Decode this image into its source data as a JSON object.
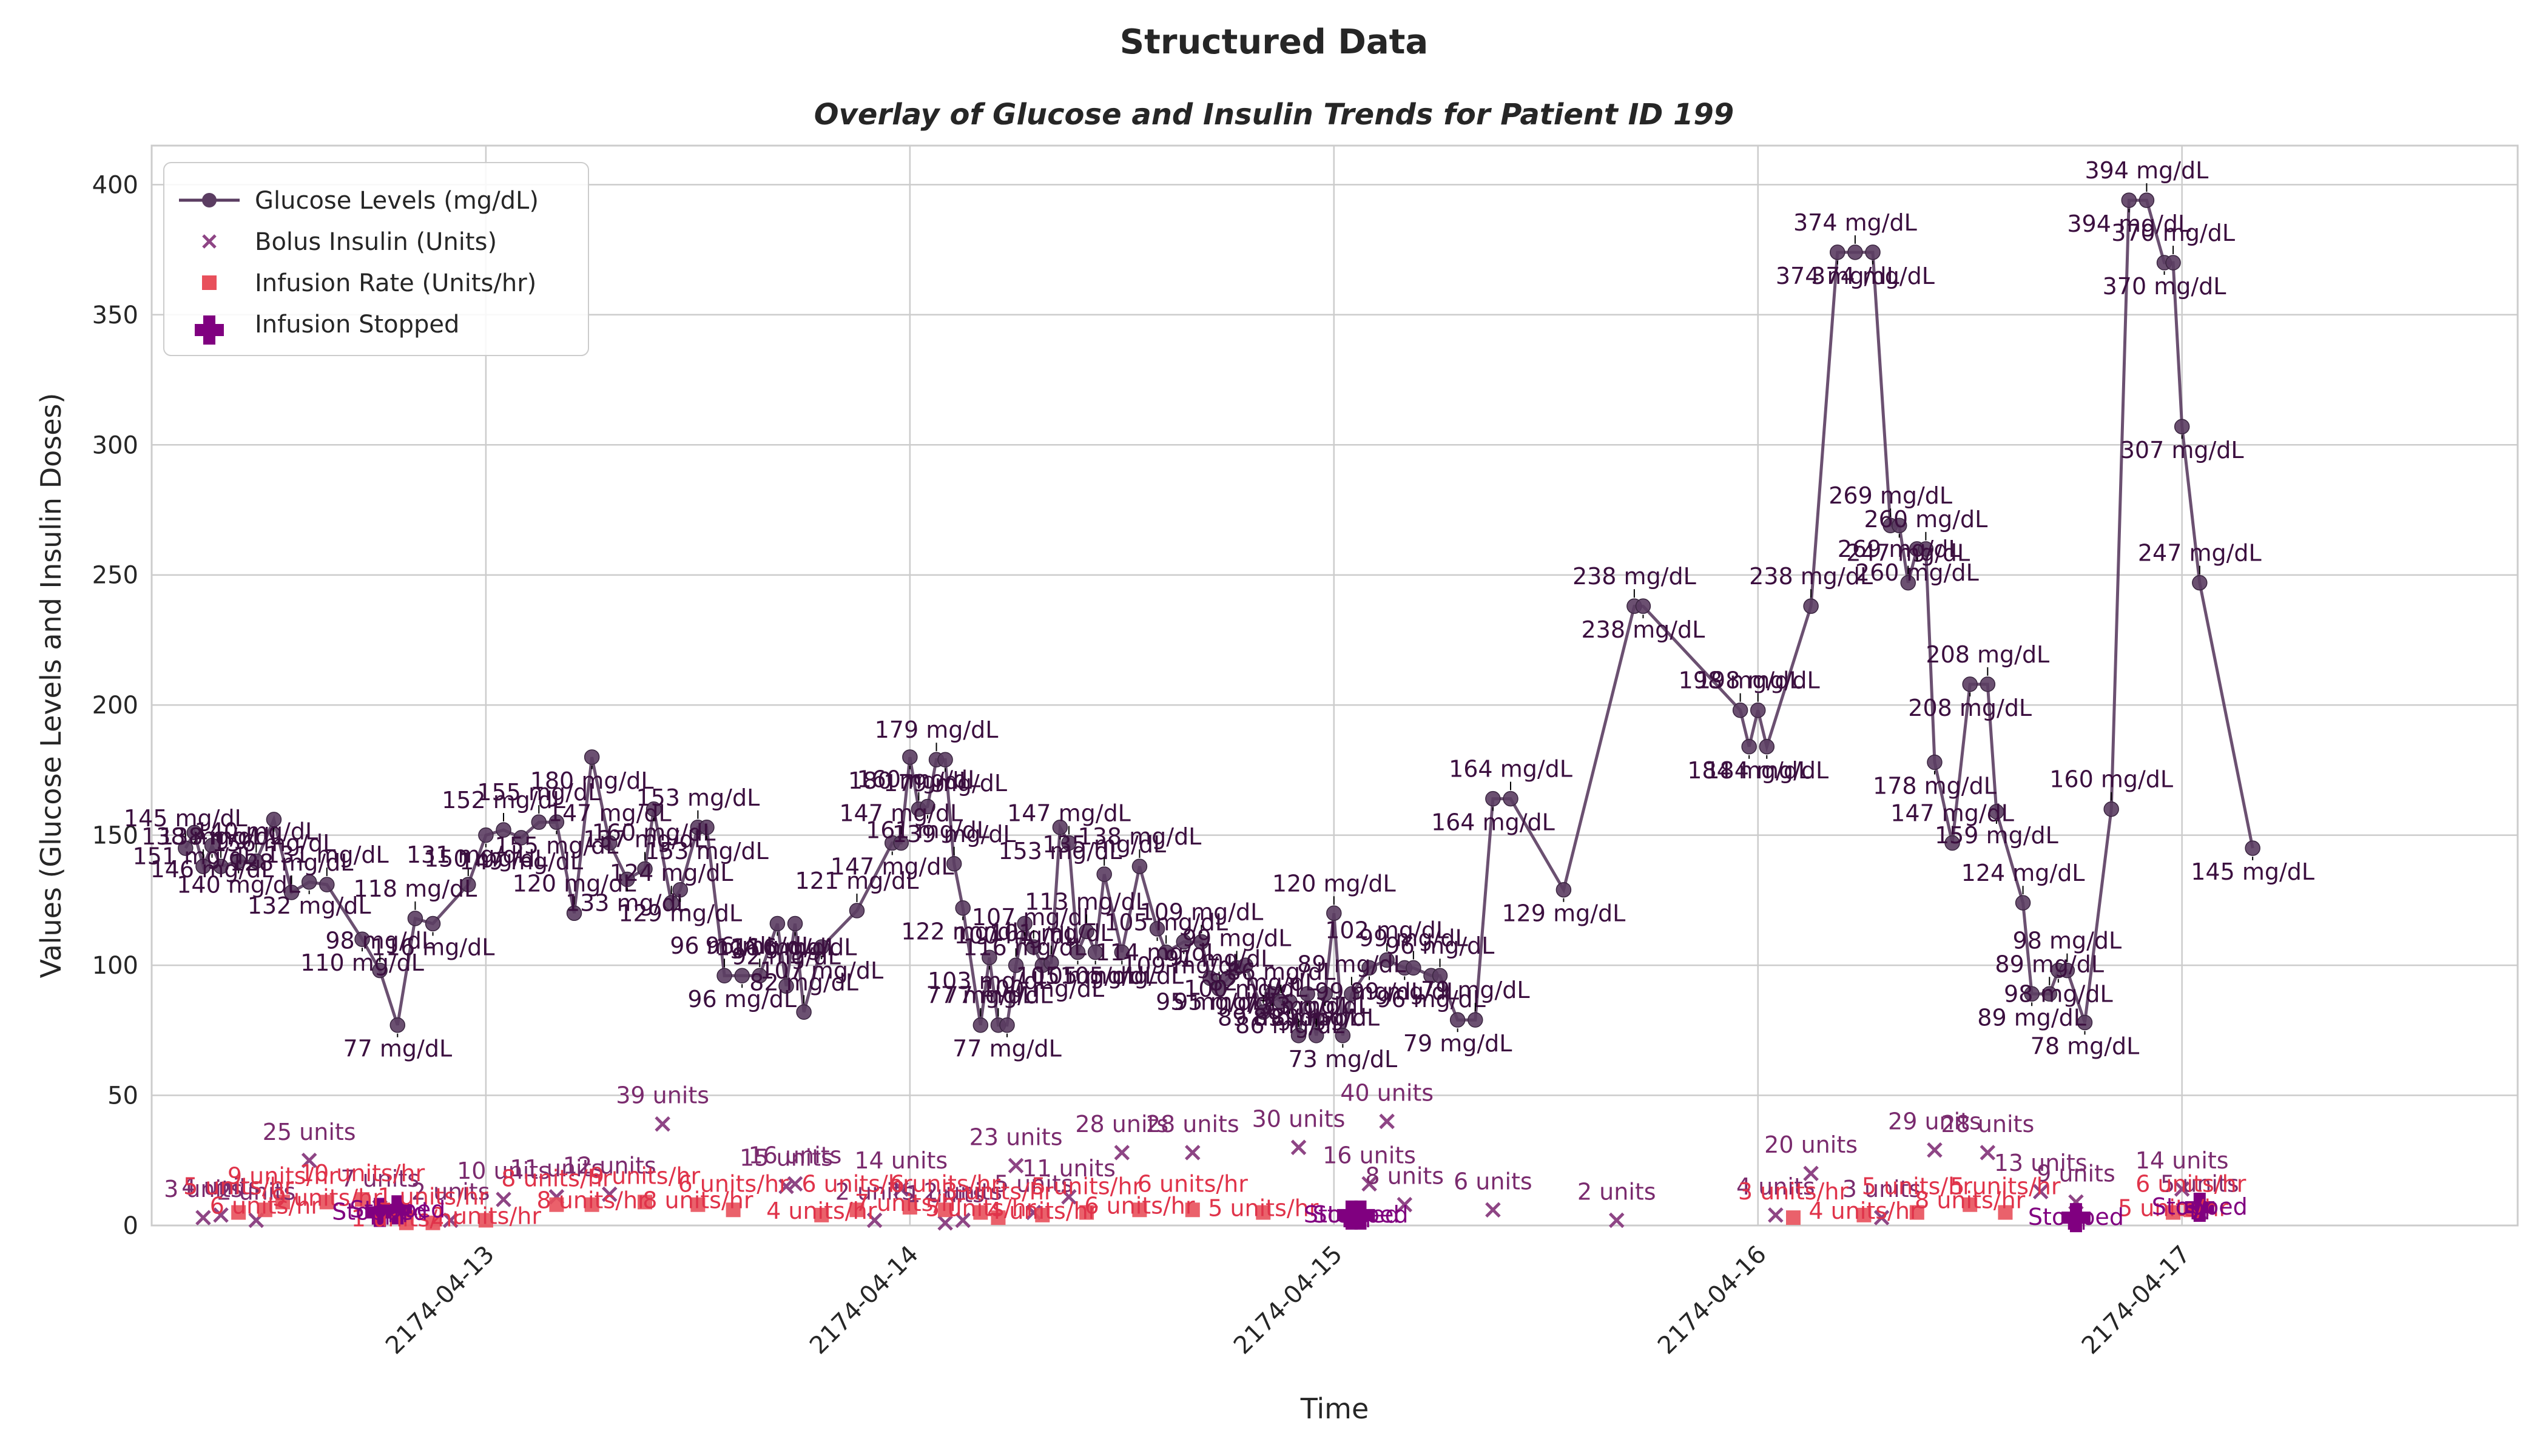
{
  "title": "Structured Data",
  "chart_data": {
    "type": "line",
    "title": "Overlay of Glucose and Insulin Trends for Patient ID 199",
    "xlabel": "Time",
    "ylabel": "Values (Glucose Levels and Insulin Doses)",
    "xlim": [
      "2174-04-12 05:05",
      "2174-04-17 19:00"
    ],
    "ylim": [
      0,
      415
    ],
    "x_ticks": [
      "2174-04-13",
      "2174-04-14",
      "2174-04-15",
      "2174-04-16",
      "2174-04-17"
    ],
    "y_ticks": [
      0,
      50,
      100,
      150,
      200,
      250,
      300,
      350,
      400
    ],
    "grid": true,
    "legend_position": "upper-left",
    "colors": {
      "glucose": "#5b3d62",
      "bolus": "#8e4585",
      "infusion": "#e8505b",
      "stopped": "#800080"
    },
    "legend": [
      "Glucose Levels (mg/dL)",
      "Bolus Insulin (Units)",
      "Infusion Rate (Units/hr)",
      "Infusion Stopped"
    ],
    "series": [
      {
        "name": "Glucose Levels (mg/dL)",
        "kind": "line",
        "label_suffix": " mg/dL",
        "points": [
          [
            "2174-04-12 07:00",
            145
          ],
          [
            "2174-04-12 07:30",
            151
          ],
          [
            "2174-04-12 08:00",
            138
          ],
          [
            "2174-04-12 08:30",
            146
          ],
          [
            "2174-04-12 09:00",
            138
          ],
          [
            "2174-04-12 10:00",
            140
          ],
          [
            "2174-04-12 11:00",
            140
          ],
          [
            "2174-04-12 12:00",
            156
          ],
          [
            "2174-04-12 13:00",
            128
          ],
          [
            "2174-04-12 14:00",
            132
          ],
          [
            "2174-04-12 15:00",
            131
          ],
          [
            "2174-04-12 17:00",
            110
          ],
          [
            "2174-04-12 18:00",
            98
          ],
          [
            "2174-04-12 19:00",
            77
          ],
          [
            "2174-04-12 20:00",
            118
          ],
          [
            "2174-04-12 21:00",
            116
          ],
          [
            "2174-04-12 23:00",
            131
          ],
          [
            "2174-04-13 00:00",
            150
          ],
          [
            "2174-04-13 01:00",
            152
          ],
          [
            "2174-04-13 02:00",
            149
          ],
          [
            "2174-04-13 03:00",
            155
          ],
          [
            "2174-04-13 04:00",
            155
          ],
          [
            "2174-04-13 05:00",
            120
          ],
          [
            "2174-04-13 06:00",
            180
          ],
          [
            "2174-04-13 07:00",
            147
          ],
          [
            "2174-04-13 08:00",
            133
          ],
          [
            "2174-04-13 09:00",
            137
          ],
          [
            "2174-04-13 09:30",
            160
          ],
          [
            "2174-04-13 10:30",
            124
          ],
          [
            "2174-04-13 11:00",
            129
          ],
          [
            "2174-04-13 12:00",
            153
          ],
          [
            "2174-04-13 12:30",
            153
          ],
          [
            "2174-04-13 13:30",
            96
          ],
          [
            "2174-04-13 14:30",
            96
          ],
          [
            "2174-04-13 15:30",
            96
          ],
          [
            "2174-04-13 16:30",
            116
          ],
          [
            "2174-04-13 17:00",
            92
          ],
          [
            "2174-04-13 17:30",
            116
          ],
          [
            "2174-04-13 18:00",
            82
          ],
          [
            "2174-04-13 19:00",
            107
          ],
          [
            "2174-04-13 21:00",
            121
          ],
          [
            "2174-04-13 23:00",
            147
          ],
          [
            "2174-04-13 23:30",
            147
          ],
          [
            "2174-04-14 00:00",
            180
          ],
          [
            "2174-04-14 00:30",
            160
          ],
          [
            "2174-04-14 01:00",
            161
          ],
          [
            "2174-04-14 01:30",
            179
          ],
          [
            "2174-04-14 02:00",
            179
          ],
          [
            "2174-04-14 02:30",
            139
          ],
          [
            "2174-04-14 03:00",
            122
          ],
          [
            "2174-04-14 04:00",
            77
          ],
          [
            "2174-04-14 04:30",
            103
          ],
          [
            "2174-04-14 05:00",
            77
          ],
          [
            "2174-04-14 05:30",
            77
          ],
          [
            "2174-04-14 06:00",
            100
          ],
          [
            "2174-04-14 06:30",
            116
          ],
          [
            "2174-04-14 07:00",
            107
          ],
          [
            "2174-04-14 07:30",
            100
          ],
          [
            "2174-04-14 08:00",
            101
          ],
          [
            "2174-04-14 08:30",
            153
          ],
          [
            "2174-04-14 09:00",
            147
          ],
          [
            "2174-04-14 09:30",
            105
          ],
          [
            "2174-04-14 10:00",
            113
          ],
          [
            "2174-04-14 10:30",
            105
          ],
          [
            "2174-04-14 11:00",
            135
          ],
          [
            "2174-04-14 12:00",
            105
          ],
          [
            "2174-04-14 13:00",
            138
          ],
          [
            "2174-04-14 14:00",
            114
          ],
          [
            "2174-04-14 14:30",
            105
          ],
          [
            "2174-04-14 15:30",
            109
          ],
          [
            "2174-04-14 16:30",
            109
          ],
          [
            "2174-04-14 17:00",
            95
          ],
          [
            "2174-04-14 17:30",
            91
          ],
          [
            "2174-04-14 18:00",
            95
          ],
          [
            "2174-04-14 18:30",
            99
          ],
          [
            "2174-04-14 19:00",
            100
          ],
          [
            "2174-04-14 20:00",
            82
          ],
          [
            "2174-04-14 20:30",
            89
          ],
          [
            "2174-04-14 21:00",
            86
          ],
          [
            "2174-04-14 21:30",
            86
          ],
          [
            "2174-04-14 22:00",
            73
          ],
          [
            "2174-04-14 22:30",
            89
          ],
          [
            "2174-04-14 23:00",
            73
          ],
          [
            "2174-04-14 23:30",
            89
          ],
          [
            "2174-04-15 00:00",
            120
          ],
          [
            "2174-04-15 00:30",
            73
          ],
          [
            "2174-04-15 01:00",
            89
          ],
          [
            "2174-04-15 02:00",
            99
          ],
          [
            "2174-04-15 03:00",
            102
          ],
          [
            "2174-04-15 04:00",
            99
          ],
          [
            "2174-04-15 04:30",
            99
          ],
          [
            "2174-04-15 05:30",
            96
          ],
          [
            "2174-04-15 06:00",
            96
          ],
          [
            "2174-04-15 07:00",
            79
          ],
          [
            "2174-04-15 08:00",
            79
          ],
          [
            "2174-04-15 09:00",
            164
          ],
          [
            "2174-04-15 10:00",
            164
          ],
          [
            "2174-04-15 13:00",
            129
          ],
          [
            "2174-04-15 17:00",
            238
          ],
          [
            "2174-04-15 17:30",
            238
          ],
          [
            "2174-04-15 23:00",
            198
          ],
          [
            "2174-04-15 23:30",
            184
          ],
          [
            "2174-04-16 00:00",
            198
          ],
          [
            "2174-04-16 00:30",
            184
          ],
          [
            "2174-04-16 03:00",
            238
          ],
          [
            "2174-04-16 04:30",
            374
          ],
          [
            "2174-04-16 05:30",
            374
          ],
          [
            "2174-04-16 06:30",
            374
          ],
          [
            "2174-04-16 07:30",
            269
          ],
          [
            "2174-04-16 08:00",
            269
          ],
          [
            "2174-04-16 08:30",
            247
          ],
          [
            "2174-04-16 09:00",
            260
          ],
          [
            "2174-04-16 09:30",
            260
          ],
          [
            "2174-04-16 10:00",
            178
          ],
          [
            "2174-04-16 11:00",
            147
          ],
          [
            "2174-04-16 12:00",
            208
          ],
          [
            "2174-04-16 13:00",
            208
          ],
          [
            "2174-04-16 13:30",
            159
          ],
          [
            "2174-04-16 15:00",
            124
          ],
          [
            "2174-04-16 15:30",
            89
          ],
          [
            "2174-04-16 16:30",
            89
          ],
          [
            "2174-04-16 17:00",
            98
          ],
          [
            "2174-04-16 17:30",
            98
          ],
          [
            "2174-04-16 18:30",
            78
          ],
          [
            "2174-04-16 20:00",
            160
          ],
          [
            "2174-04-16 21:00",
            394
          ],
          [
            "2174-04-16 22:00",
            394
          ],
          [
            "2174-04-16 23:00",
            370
          ],
          [
            "2174-04-16 23:30",
            370
          ],
          [
            "2174-04-17 00:00",
            307
          ],
          [
            "2174-04-17 01:00",
            247
          ],
          [
            "2174-04-17 04:00",
            145
          ]
        ]
      },
      {
        "name": "Bolus Insulin (Units)",
        "kind": "scatter",
        "label_suffix": " units",
        "points": [
          [
            "2174-04-12 08:00",
            3
          ],
          [
            "2174-04-12 09:00",
            4
          ],
          [
            "2174-04-12 11:00",
            2
          ],
          [
            "2174-04-12 14:00",
            25
          ],
          [
            "2174-04-12 18:00",
            7
          ],
          [
            "2174-04-12 22:00",
            2
          ],
          [
            "2174-04-13 01:00",
            10
          ],
          [
            "2174-04-13 04:00",
            11
          ],
          [
            "2174-04-13 07:00",
            12
          ],
          [
            "2174-04-13 10:00",
            39
          ],
          [
            "2174-04-13 17:00",
            15
          ],
          [
            "2174-04-13 17:30",
            16
          ],
          [
            "2174-04-13 22:00",
            2
          ],
          [
            "2174-04-13 23:30",
            14
          ],
          [
            "2174-04-14 02:00",
            1
          ],
          [
            "2174-04-14 03:00",
            2
          ],
          [
            "2174-04-14 06:00",
            23
          ],
          [
            "2174-04-14 07:00",
            5
          ],
          [
            "2174-04-14 09:00",
            11
          ],
          [
            "2174-04-14 12:00",
            28
          ],
          [
            "2174-04-14 16:00",
            28
          ],
          [
            "2174-04-14 22:00",
            30
          ],
          [
            "2174-04-15 02:00",
            16
          ],
          [
            "2174-04-15 03:00",
            40
          ],
          [
            "2174-04-15 04:00",
            8
          ],
          [
            "2174-04-15 09:00",
            6
          ],
          [
            "2174-04-15 16:00",
            2
          ],
          [
            "2174-04-16 01:00",
            4
          ],
          [
            "2174-04-16 03:00",
            20
          ],
          [
            "2174-04-16 07:00",
            3
          ],
          [
            "2174-04-16 10:00",
            29
          ],
          [
            "2174-04-16 13:00",
            28
          ],
          [
            "2174-04-16 16:00",
            13
          ],
          [
            "2174-04-16 18:00",
            9
          ],
          [
            "2174-04-17 00:00",
            14
          ],
          [
            "2174-04-17 01:00",
            5
          ]
        ]
      },
      {
        "name": "Infusion Rate (Units/hr)",
        "kind": "scatter",
        "label_suffix": " units/hr",
        "points": [
          [
            "2174-04-12 10:00",
            5
          ],
          [
            "2174-04-12 11:30",
            6
          ],
          [
            "2174-04-12 12:30",
            9
          ],
          [
            "2174-04-12 15:00",
            9
          ],
          [
            "2174-04-12 17:00",
            10
          ],
          [
            "2174-04-12 19:30",
            1
          ],
          [
            "2174-04-12 21:00",
            1
          ],
          [
            "2174-04-13 00:00",
            2
          ],
          [
            "2174-04-13 04:00",
            8
          ],
          [
            "2174-04-13 06:00",
            8
          ],
          [
            "2174-04-13 09:00",
            9
          ],
          [
            "2174-04-13 12:00",
            8
          ],
          [
            "2174-04-13 14:00",
            6
          ],
          [
            "2174-04-13 19:00",
            4
          ],
          [
            "2174-04-13 21:00",
            6
          ],
          [
            "2174-04-14 00:00",
            7
          ],
          [
            "2174-04-14 02:00",
            6
          ],
          [
            "2174-04-14 04:00",
            5
          ],
          [
            "2174-04-14 05:00",
            3
          ],
          [
            "2174-04-14 07:30",
            4
          ],
          [
            "2174-04-14 10:00",
            5
          ],
          [
            "2174-04-14 13:00",
            6
          ],
          [
            "2174-04-14 16:00",
            6
          ],
          [
            "2174-04-14 20:00",
            5
          ],
          [
            "2174-04-16 02:00",
            3
          ],
          [
            "2174-04-16 06:00",
            4
          ],
          [
            "2174-04-16 09:00",
            5
          ],
          [
            "2174-04-16 12:00",
            8
          ],
          [
            "2174-04-16 14:00",
            5
          ],
          [
            "2174-04-16 23:30",
            5
          ],
          [
            "2174-04-17 00:30",
            6
          ]
        ]
      },
      {
        "name": "Infusion Stopped",
        "kind": "scatter",
        "label": "Stopped",
        "points": [
          [
            "2174-04-12 18:00",
            5
          ],
          [
            "2174-04-12 19:00",
            6
          ],
          [
            "2174-04-15 01:00",
            4
          ],
          [
            "2174-04-15 01:30",
            4
          ],
          [
            "2174-04-16 18:00",
            3
          ],
          [
            "2174-04-17 01:00",
            7
          ]
        ]
      }
    ]
  }
}
